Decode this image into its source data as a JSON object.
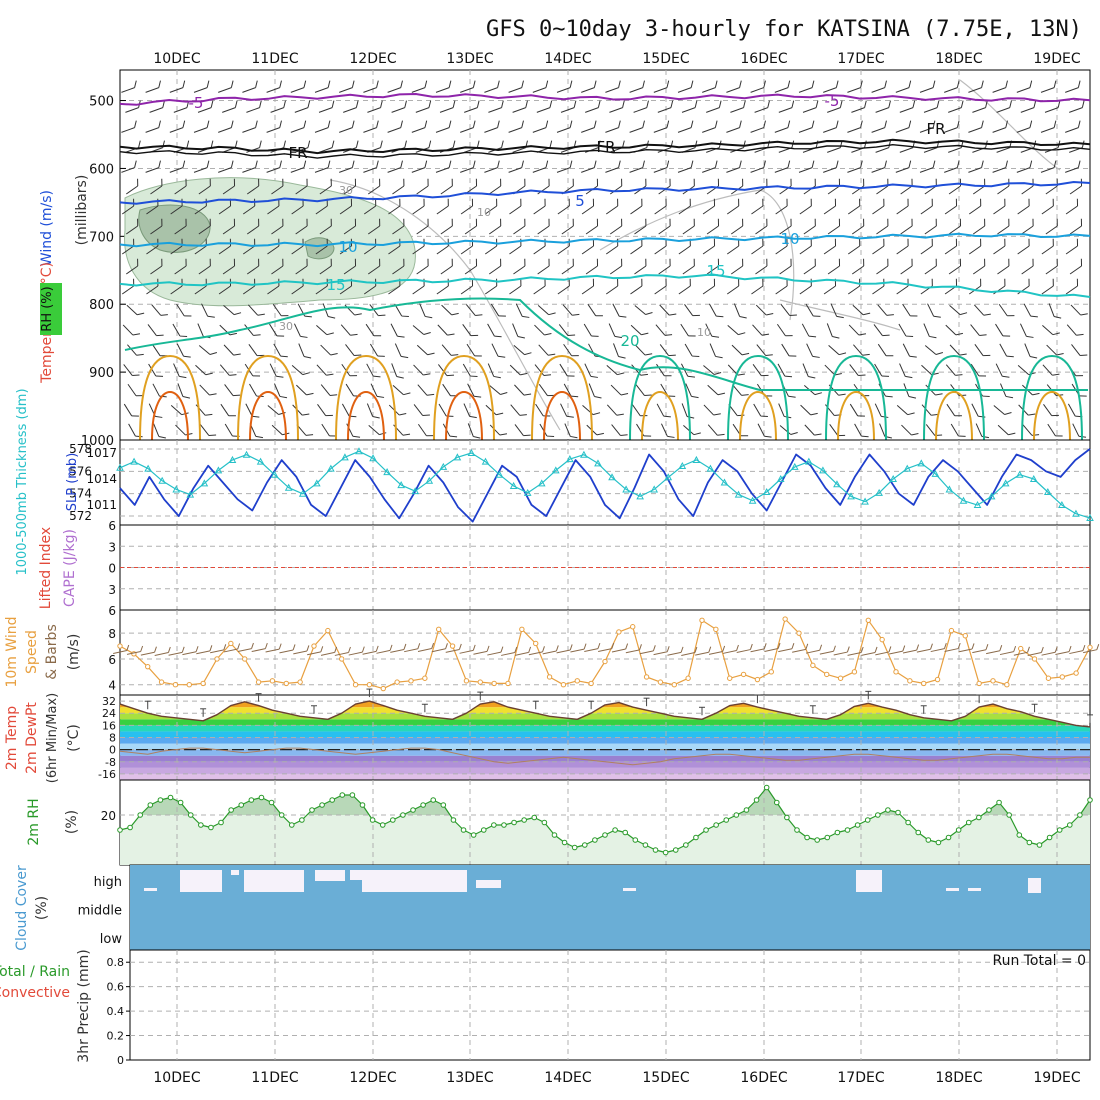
{
  "title": "GFS 0~10day 3-hourly for KATSINA (7.75E, 13N)",
  "date_labels": [
    "10DEC",
    "11DEC",
    "12DEC",
    "13DEC",
    "14DEC",
    "15DEC",
    "16DEC",
    "17DEC",
    "18DEC",
    "19DEC"
  ],
  "colors": {
    "purple": "#8e24aa",
    "black": "#111111",
    "blue": "#1f4fd8",
    "lightblue": "#1aa0dc",
    "cyan": "#20c4c4",
    "teal": "#18b896",
    "orange": "#e0a020",
    "darkorange": "#e06010",
    "rh_fill": "#dcecdc",
    "sky": "#6aaed6",
    "slp": "#26c0c8",
    "thick": "#1f3fcc",
    "wind": "#e8a040",
    "barb": "#8a6a4a",
    "rh2m": "#2a9a2a",
    "grid": "#b0b0b0"
  },
  "chart_data": [
    {
      "type": "line",
      "panel": "upper-air",
      "ylabel": "Wind (m/s)",
      "ylabel2": "Temperature (°C)",
      "ylabel3": "(millibars)",
      "ylabel4": "RH (%)",
      "y_ticks": [
        "500",
        "600",
        "700",
        "800",
        "900",
        "1000"
      ],
      "y_range_mb": [
        455,
        1000
      ],
      "isotherm_labels": [
        "-5",
        "-5",
        "FR",
        "FR",
        "FR",
        "5",
        "10",
        "10",
        "15",
        "15",
        "20",
        "30",
        "10",
        "30",
        "10"
      ],
      "isotherms": [
        {
          "label": "-5",
          "level_mb": [
            505,
            498,
            495,
            492,
            494,
            497,
            495,
            493,
            496,
            498,
            500
          ]
        },
        {
          "label": "FR",
          "level_mb": [
            568,
            570,
            575,
            573,
            570,
            568,
            566,
            562,
            560,
            562,
            565
          ]
        },
        {
          "label": "5",
          "level_mb": [
            650,
            648,
            646,
            642,
            636,
            632,
            630,
            628,
            626,
            624,
            622
          ]
        },
        {
          "label": "10",
          "level_mb": [
            712,
            712,
            712,
            710,
            708,
            706,
            704,
            702,
            700,
            698,
            700
          ]
        },
        {
          "label": "15",
          "level_mb": [
            770,
            770,
            768,
            766,
            764,
            760,
            758,
            764,
            770,
            780,
            790
          ]
        }
      ]
    },
    {
      "type": "line",
      "panel": "slp-thickness",
      "ylabel": "1000-500mb Thickness (dm)",
      "ylabel2": "SLP (mb)",
      "y_ticks_left": [
        "578",
        "576",
        "574",
        "572"
      ],
      "y_ticks_right": [
        "1017",
        "1014",
        "1011"
      ],
      "series": [
        {
          "name": "Thickness (dm)",
          "values": [
            574.5,
            573.0,
            575.5,
            573.5,
            572.0,
            574.5,
            576.5,
            575.0,
            573.5,
            572.5,
            575.0,
            577.0,
            575.5,
            573.0,
            572.0,
            574.5,
            577.0,
            575.5,
            573.5,
            571.8,
            574.0,
            576.5,
            575.0,
            572.8,
            571.5,
            574.0,
            576.5,
            575.5,
            573.0,
            572.0,
            574.5,
            577.0,
            575.5,
            573.0,
            571.8,
            574.5,
            577.5,
            576.0,
            573.5,
            572.0,
            575.0,
            577.0,
            576.0,
            574.0,
            572.5,
            575.0,
            577.5,
            576.5,
            574.5,
            573.0,
            575.5,
            577.5,
            576.0,
            574.0,
            573.0,
            575.5,
            577.0,
            576.0,
            574.5,
            573.0,
            575.5,
            577.5,
            577.0,
            576.0,
            575.5,
            577.0,
            578.0
          ]
        },
        {
          "name": "SLP (mb)",
          "values": [
            1015.3,
            1016.0,
            1015.2,
            1013.8,
            1012.8,
            1012.2,
            1013.5,
            1015.0,
            1016.2,
            1016.8,
            1016.0,
            1014.5,
            1013.0,
            1012.3,
            1013.5,
            1015.2,
            1016.5,
            1017.2,
            1016.4,
            1014.8,
            1013.3,
            1012.6,
            1013.8,
            1015.4,
            1016.5,
            1017.0,
            1016.0,
            1014.5,
            1013.2,
            1012.4,
            1013.5,
            1015.0,
            1016.3,
            1016.8,
            1015.8,
            1014.2,
            1012.8,
            1012.0,
            1012.8,
            1014.2,
            1015.5,
            1016.2,
            1015.2,
            1013.6,
            1012.2,
            1011.5,
            1012.5,
            1014.0,
            1015.4,
            1016.0,
            1015.0,
            1013.4,
            1012.0,
            1011.4,
            1012.4,
            1014.0,
            1015.2,
            1015.8,
            1014.6,
            1012.8,
            1011.5,
            1011.0,
            1012.0,
            1013.5,
            1014.5,
            1014.0,
            1012.5,
            1011.0,
            1010.0,
            1009.5
          ]
        }
      ]
    },
    {
      "type": "line",
      "panel": "stability",
      "ylabel": "Lifted Index",
      "ylabel2": "CAPE (J/kg)",
      "y_ticks": [
        "6",
        "3",
        "0",
        "3",
        "6"
      ],
      "series": []
    },
    {
      "type": "line",
      "panel": "10m-wind",
      "ylabel": "10m Wind",
      "ylabel2": "Speed",
      "ylabel3": "& Barbs",
      "ylabel4": "(m/s)",
      "y_ticks": [
        "8",
        "6",
        "4"
      ],
      "ylim": [
        3.2,
        9.8
      ],
      "series": [
        {
          "name": "10m Wind Speed (m/s)",
          "values": [
            7.0,
            6.4,
            5.4,
            4.2,
            4.0,
            4.0,
            4.1,
            6.0,
            7.2,
            6.0,
            4.2,
            4.3,
            4.1,
            4.2,
            7.0,
            8.2,
            6.0,
            4.0,
            4.0,
            3.7,
            4.2,
            4.3,
            4.5,
            8.3,
            7.0,
            4.3,
            4.2,
            4.1,
            4.1,
            8.3,
            7.2,
            4.6,
            4.0,
            4.3,
            4.1,
            5.8,
            8.1,
            8.5,
            4.6,
            4.2,
            4.0,
            4.5,
            9.0,
            8.3,
            4.5,
            4.8,
            4.4,
            5.0,
            9.1,
            8.0,
            5.5,
            4.8,
            4.5,
            5.0,
            9.0,
            7.5,
            5.0,
            4.3,
            4.1,
            4.4,
            8.2,
            7.8,
            4.1,
            4.3,
            4.0,
            6.8,
            6.0,
            4.5,
            4.6,
            4.9,
            6.9
          ]
        }
      ]
    },
    {
      "type": "area",
      "panel": "2m-temp",
      "ylabel": "2m Temp",
      "ylabel2": "2m DewPt",
      "ylabel3": "(6hr Min/Max)",
      "ylabel4": "(°C)",
      "y_ticks": [
        "32",
        "24",
        "16",
        "8",
        "0",
        "-8",
        "-16"
      ],
      "ylim": [
        -20,
        36
      ],
      "series": [
        {
          "name": "2m Temp (°C)",
          "values": [
            30.0,
            27.0,
            24.0,
            22.0,
            21.0,
            20.0,
            19.0,
            23.0,
            29.0,
            31.5,
            29.0,
            26.0,
            24.0,
            22.0,
            21.0,
            20.0,
            24.0,
            30.0,
            32.0,
            29.0,
            26.0,
            24.0,
            22.0,
            21.0,
            20.0,
            24.0,
            30.0,
            31.5,
            28.0,
            26.0,
            24.0,
            22.0,
            21.0,
            20.0,
            24.0,
            29.5,
            31.0,
            28.0,
            26.0,
            24.0,
            22.0,
            21.0,
            20.0,
            24.0,
            29.0,
            30.5,
            28.0,
            26.0,
            24.0,
            22.0,
            21.0,
            20.0,
            23.0,
            28.5,
            30.5,
            28.0,
            26.0,
            23.0,
            21.0,
            20.0,
            19.0,
            22.0,
            28.0,
            30.0,
            27.0,
            25.0,
            22.0,
            20.0,
            18.0,
            16.0,
            15.0
          ]
        },
        {
          "name": "2m DewPt (°C)",
          "values": [
            -1,
            -2,
            -3,
            -1,
            0,
            1,
            1,
            0,
            -1,
            -2,
            -1,
            0,
            1,
            1,
            0,
            -1,
            -2,
            -3,
            -2,
            -1,
            0,
            1,
            1,
            0,
            -2,
            -4,
            -6,
            -8,
            -9,
            -8,
            -7,
            -6,
            -5,
            -6,
            -7,
            -8,
            -9,
            -10,
            -9,
            -8,
            -6,
            -5,
            -4,
            -3,
            -3,
            -4,
            -5,
            -6,
            -7,
            -7,
            -6,
            -5,
            -4,
            -3,
            -3,
            -4,
            -5,
            -6,
            -7,
            -7,
            -6,
            -5,
            -4,
            -3,
            -3,
            -4,
            -5,
            -6,
            -6,
            -5,
            -5
          ]
        }
      ]
    },
    {
      "type": "area",
      "panel": "2m-rh",
      "ylabel": "2m RH",
      "ylabel2": "(%)",
      "y_ticks": [
        "20"
      ],
      "ylim": [
        0,
        34
      ],
      "series": [
        {
          "name": "2m RH (%)",
          "values": [
            14,
            15,
            20,
            24,
            26,
            27,
            25,
            20,
            16,
            15,
            17,
            22,
            24,
            26,
            27,
            25,
            20,
            16,
            18,
            22,
            24,
            26,
            28,
            28,
            24,
            18,
            16,
            18,
            20,
            22,
            24,
            26,
            24,
            18,
            14,
            12,
            14,
            16,
            16,
            17,
            18,
            19,
            17,
            12,
            9,
            7,
            8,
            10,
            12,
            14,
            13,
            10,
            8,
            6,
            5,
            6,
            8,
            11,
            14,
            16,
            18,
            20,
            22,
            26,
            31,
            25,
            19,
            14,
            11,
            10,
            11,
            13,
            14,
            16,
            18,
            20,
            22,
            21,
            17,
            13,
            10,
            9,
            11,
            14,
            17,
            19,
            22,
            25,
            20,
            12,
            9,
            8,
            11,
            14,
            16,
            20,
            26
          ]
        }
      ]
    },
    {
      "type": "area",
      "panel": "cloud-cover",
      "ylabel": "Cloud Cover",
      "ylabel2": "(%)",
      "y_ticks": [
        "high",
        "middle",
        "low"
      ],
      "series": []
    },
    {
      "type": "bar",
      "panel": "3hr-precip",
      "ylabel": "3hr Precip (mm)",
      "ylabel2": "Total / Rain",
      "ylabel3": "Convective",
      "annotation": "Run Total = 0",
      "y_ticks": [
        "0.8",
        "0.6",
        "0.4",
        "0.2",
        "0"
      ],
      "ylim": [
        0,
        0.9
      ],
      "series": [
        {
          "name": "3hr Precip (mm)",
          "values": []
        }
      ]
    }
  ]
}
